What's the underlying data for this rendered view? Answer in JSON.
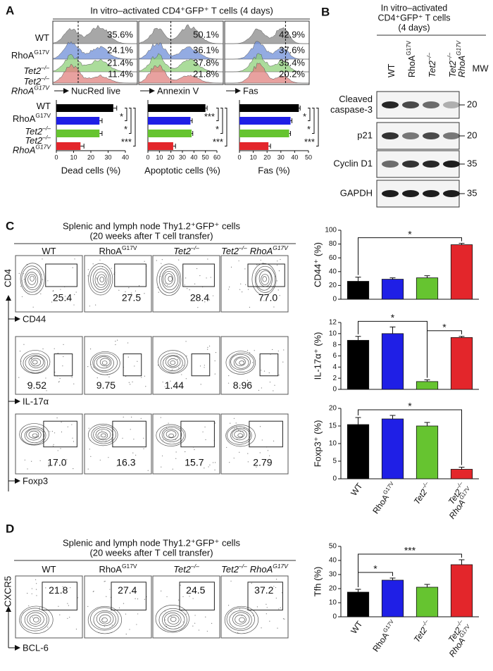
{
  "groups": [
    [
      {
        "t": "WT"
      }
    ],
    [
      {
        "t": "RhoA",
        "sup": "G17V"
      }
    ],
    [
      {
        "t": "Tet2",
        "sup": "–/–",
        "i": true
      }
    ],
    [
      {
        "t": "Tet2",
        "sup": "–/–",
        "i": true
      },
      {
        "t": "RhoA",
        "sup": "G17V",
        "i": true
      }
    ]
  ],
  "colors": [
    "#000000",
    "#1f1fe6",
    "#66c430",
    "#e3262b"
  ],
  "panel_a": {
    "label": "A",
    "title": "In vitro–activated CD4⁺GFP⁺ T cells (4 days)",
    "histograms": [
      {
        "marker": "NucRed live",
        "percents": [
          "35.6%",
          "24.1%",
          "21.4%",
          "11.4%"
        ]
      },
      {
        "marker": "Annexin V",
        "percents": [
          "50.1%",
          "36.1%",
          "37.8%",
          "21.8%"
        ]
      },
      {
        "marker": "Fas",
        "percents": [
          "42.9%",
          "37.6%",
          "35.4%",
          "20.2%"
        ]
      }
    ],
    "bar_charts": [
      {
        "type": "bar",
        "orientation": "horizontal",
        "xlabel": "Dead cells (%)",
        "values": [
          33,
          25,
          25,
          14
        ],
        "errors": [
          2,
          1.5,
          1.5,
          2
        ],
        "xlim": [
          0,
          40
        ],
        "xticks": [
          0,
          10,
          20,
          30,
          40
        ],
        "significance": [
          {
            "from": 0,
            "to": 1,
            "label": "*"
          },
          {
            "from": 0,
            "to": 2,
            "label": "*"
          },
          {
            "from": 0,
            "to": 3,
            "label": "***"
          }
        ]
      },
      {
        "type": "bar",
        "orientation": "horizontal",
        "xlabel": "Apoptotic cells (%)",
        "values": [
          50,
          37,
          38,
          22
        ],
        "errors": [
          1.5,
          1.5,
          1,
          2
        ],
        "xlim": [
          0,
          60
        ],
        "xticks": [
          0,
          10,
          20,
          30,
          40,
          50,
          60
        ],
        "significance": [
          {
            "from": 0,
            "to": 1,
            "label": "***"
          },
          {
            "from": 0,
            "to": 2,
            "label": "*"
          },
          {
            "from": 0,
            "to": 3,
            "label": "***"
          }
        ]
      },
      {
        "type": "bar",
        "orientation": "horizontal",
        "xlabel": "Fas (%)",
        "values": [
          43,
          37,
          36,
          21
        ],
        "errors": [
          1,
          1,
          1,
          1.5
        ],
        "xlim": [
          0,
          50
        ],
        "xticks": [
          0,
          10,
          20,
          30,
          40,
          50
        ],
        "significance": [
          {
            "from": 0,
            "to": 1,
            "label": "*"
          },
          {
            "from": 0,
            "to": 2,
            "label": "*"
          },
          {
            "from": 0,
            "to": 3,
            "label": "***"
          }
        ]
      }
    ]
  },
  "panel_b": {
    "label": "B",
    "title": [
      "In vitro–activated",
      "CD4⁺GFP⁺ T cells",
      "(4 days)"
    ],
    "mw_header": "MW",
    "blots": [
      {
        "name": [
          "Cleaved",
          "caspase-3"
        ],
        "mw": 20
      },
      {
        "name": [
          "p21"
        ],
        "mw": 20
      },
      {
        "name": [
          "Cyclin D1"
        ],
        "mw": 35
      },
      {
        "name": [
          "GAPDH"
        ],
        "mw": 35
      }
    ]
  },
  "panel_c": {
    "label": "C",
    "title": [
      "Splenic and lymph node Thy1.2⁺GFP⁺ cells",
      "(20 weeks after T cell transfer)"
    ],
    "y_marker": "CD4",
    "rows": [
      {
        "marker": "CD44",
        "gates": [
          "25.4",
          "27.5",
          "28.4",
          "77.0"
        ]
      },
      {
        "marker": "IL-17α",
        "gates": [
          "9.52",
          "9.75",
          "1.44",
          "8.96"
        ]
      },
      {
        "marker": "Foxp3",
        "gates": [
          "17.0",
          "16.3",
          "15.7",
          "2.79"
        ]
      }
    ],
    "bar_charts": [
      {
        "type": "bar",
        "ylabel": "CD44⁺ (%)",
        "values": [
          26,
          29,
          31,
          79
        ],
        "errors": [
          6,
          2,
          3,
          2
        ],
        "ylim": [
          0,
          100
        ],
        "yticks": [
          0,
          20,
          40,
          60,
          80,
          100
        ],
        "significance": [
          {
            "from": 0,
            "to": 3,
            "label": "*"
          }
        ]
      },
      {
        "type": "bar",
        "ylabel": "IL-17α⁺ (%)",
        "values": [
          8.8,
          10,
          1.4,
          9.3
        ],
        "errors": [
          0.7,
          1.2,
          0.3,
          0.2
        ],
        "ylim": [
          0,
          12
        ],
        "yticks": [
          0,
          2,
          4,
          6,
          8,
          10,
          12
        ],
        "significance": [
          {
            "from": 0,
            "to": 2,
            "label": "*"
          },
          {
            "from": 2,
            "to": 3,
            "label": "*"
          }
        ]
      },
      {
        "type": "bar",
        "ylabel": "Foxp3⁺ (%)",
        "values": [
          15.4,
          17,
          15,
          2.7
        ],
        "errors": [
          2,
          1,
          1,
          0.6
        ],
        "ylim": [
          0,
          20
        ],
        "yticks": [
          0,
          5,
          10,
          15,
          20
        ],
        "significance": [
          {
            "from": 0,
            "to": 3,
            "label": "*"
          }
        ],
        "category_labels": true
      }
    ]
  },
  "panel_d": {
    "label": "D",
    "title": [
      "Splenic and lymph node Thy1.2⁺GFP⁺ cells",
      "(20 weeks after T cell transfer)"
    ],
    "y_marker": "CXCR5",
    "x_marker": "BCL-6",
    "gates": [
      "21.8",
      "27.4",
      "24.5",
      "37.2"
    ],
    "bar_chart": {
      "type": "bar",
      "ylabel": "Tfh (%)",
      "values": [
        17.5,
        26,
        21,
        37
      ],
      "errors": [
        2,
        1.5,
        2,
        3.5
      ],
      "ylim": [
        0,
        50
      ],
      "yticks": [
        0,
        10,
        20,
        30,
        40,
        50
      ],
      "significance": [
        {
          "from": 0,
          "to": 1,
          "label": "*"
        },
        {
          "from": 0,
          "to": 3,
          "label": "***"
        }
      ],
      "category_labels": true
    }
  }
}
